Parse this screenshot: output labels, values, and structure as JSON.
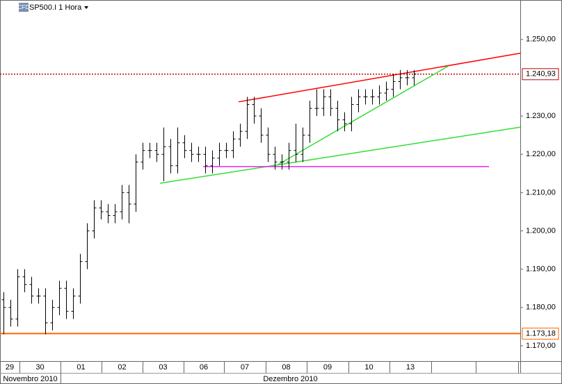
{
  "chart_data": {
    "type": "ohlc",
    "icon_text": "CFD",
    "title": "SP500.I 1 Hora",
    "x": [
      0,
      1,
      2,
      3,
      4,
      5,
      6,
      7,
      8,
      9,
      10,
      11,
      12,
      13,
      14,
      15,
      16,
      17,
      18,
      19,
      20,
      21,
      22,
      23,
      24,
      25,
      26,
      27,
      28,
      29,
      30,
      31,
      32,
      33,
      34,
      35,
      36,
      37,
      38,
      39,
      40,
      41,
      42,
      43,
      44,
      45,
      46,
      47,
      48,
      49,
      50,
      51,
      52,
      53,
      54,
      55,
      56,
      57,
      58,
      59
    ],
    "open": [
      1182,
      1180,
      1177,
      1188,
      1186,
      1183,
      1183,
      1176,
      1180,
      1185,
      1179,
      1183,
      1192,
      1200,
      1206,
      1205,
      1204,
      1205,
      1210,
      1207,
      1218,
      1221,
      1221,
      1220,
      1222,
      1217,
      1223,
      1221,
      1220,
      1220,
      1217,
      1219,
      1221,
      1221,
      1224,
      1226,
      1233,
      1230,
      1225,
      1220,
      1218,
      1218,
      1221,
      1220,
      1225,
      1232,
      1232,
      1235,
      1232,
      1229,
      1228,
      1233,
      1235,
      1235,
      1235,
      1236,
      1237,
      1239,
      1240,
      1240
    ],
    "high": [
      1184,
      1182,
      1190,
      1190,
      1188,
      1185,
      1185,
      1182,
      1187,
      1187,
      1185,
      1194,
      1202,
      1208,
      1208,
      1207,
      1207,
      1212,
      1212,
      1220,
      1223,
      1223,
      1223,
      1227,
      1224,
      1227,
      1225,
      1223,
      1222,
      1222,
      1221,
      1223,
      1223,
      1226,
      1228,
      1235,
      1235,
      1232,
      1227,
      1222,
      1220,
      1223,
      1228,
      1227,
      1234,
      1237,
      1237,
      1237,
      1234,
      1231,
      1235,
      1237,
      1237,
      1237,
      1238,
      1239,
      1241,
      1242,
      1242,
      1242
    ],
    "low": [
      1173,
      1175,
      1175,
      1184,
      1181,
      1181,
      1173,
      1174,
      1178,
      1177,
      1177,
      1181,
      1190,
      1198,
      1203,
      1202,
      1202,
      1203,
      1202,
      1205,
      1216,
      1219,
      1218,
      1213,
      1215,
      1215,
      1219,
      1218,
      1218,
      1215,
      1215,
      1217,
      1219,
      1219,
      1222,
      1224,
      1228,
      1223,
      1218,
      1216,
      1216,
      1216,
      1218,
      1218,
      1223,
      1230,
      1230,
      1230,
      1226,
      1226,
      1226,
      1231,
      1233,
      1233,
      1233,
      1234,
      1235,
      1237,
      1238,
      1238
    ],
    "close": [
      1180,
      1177,
      1188,
      1186,
      1183,
      1183,
      1176,
      1180,
      1185,
      1179,
      1183,
      1192,
      1200,
      1206,
      1205,
      1204,
      1205,
      1210,
      1207,
      1218,
      1221,
      1221,
      1220,
      1222,
      1217,
      1223,
      1221,
      1220,
      1220,
      1217,
      1219,
      1221,
      1221,
      1224,
      1226,
      1233,
      1230,
      1225,
      1220,
      1218,
      1218,
      1221,
      1220,
      1225,
      1232,
      1232,
      1235,
      1232,
      1229,
      1228,
      1233,
      1235,
      1235,
      1235,
      1236,
      1237,
      1239,
      1240,
      1240,
      1241
    ],
    "color": "#000000",
    "xlim": [
      -0.5,
      74.3
    ],
    "ylim": [
      1166,
      1260.3
    ],
    "yticks": [
      {
        "value": 1170,
        "label": "1.170,00"
      },
      {
        "value": 1180,
        "label": "1.180,00"
      },
      {
        "value": 1190,
        "label": "1.190,00"
      },
      {
        "value": 1200,
        "label": "1.200,00"
      },
      {
        "value": 1210,
        "label": "1.210,00"
      },
      {
        "value": 1220,
        "label": "1.220,00"
      },
      {
        "value": 1230,
        "label": "1.230,00"
      },
      {
        "value": 1250,
        "label": "1.250,00"
      }
    ],
    "xticks": [
      {
        "value": -0.5,
        "label": "29"
      },
      {
        "value": 2.3,
        "label": "30"
      },
      {
        "value": 8.2,
        "label": "01"
      },
      {
        "value": 14.1,
        "label": "02"
      },
      {
        "value": 20,
        "label": "03"
      },
      {
        "value": 25.9,
        "label": "06"
      },
      {
        "value": 31.7,
        "label": "07"
      },
      {
        "value": 37.7,
        "label": "08"
      },
      {
        "value": 43.6,
        "label": "09"
      },
      {
        "value": 49.6,
        "label": "10"
      },
      {
        "value": 55.5,
        "label": "13"
      }
    ],
    "xgrid": [
      61.5,
      67.9,
      74.0
    ],
    "months": [
      {
        "value": -0.5,
        "label": "Novembro 2010"
      },
      {
        "value": 8.2,
        "label": "Dezembro 2010"
      }
    ],
    "levels": [
      {
        "value": 1240.93,
        "label": "1.240,93",
        "color": "#c00000",
        "style": "dotted"
      },
      {
        "value": 1173.18,
        "label": "1.173,18",
        "color": "#ff6600",
        "style": "solid"
      }
    ],
    "trendlines": [
      {
        "color": "#ff0000",
        "x": [
          33.8,
          74.3
        ],
        "y": [
          1233.7,
          1246.4
        ]
      },
      {
        "color": "#33dd33",
        "x": [
          39.5,
          64.0
        ],
        "y": [
          1217.35,
          1243.1
        ]
      },
      {
        "color": "#33dd33",
        "x": [
          22.5,
          74.3
        ],
        "y": [
          1212.45,
          1227.1
        ]
      },
      {
        "color": "#ee22ee",
        "x": [
          28.7,
          69.8
        ],
        "y": [
          1216.8,
          1216.8
        ]
      }
    ]
  }
}
